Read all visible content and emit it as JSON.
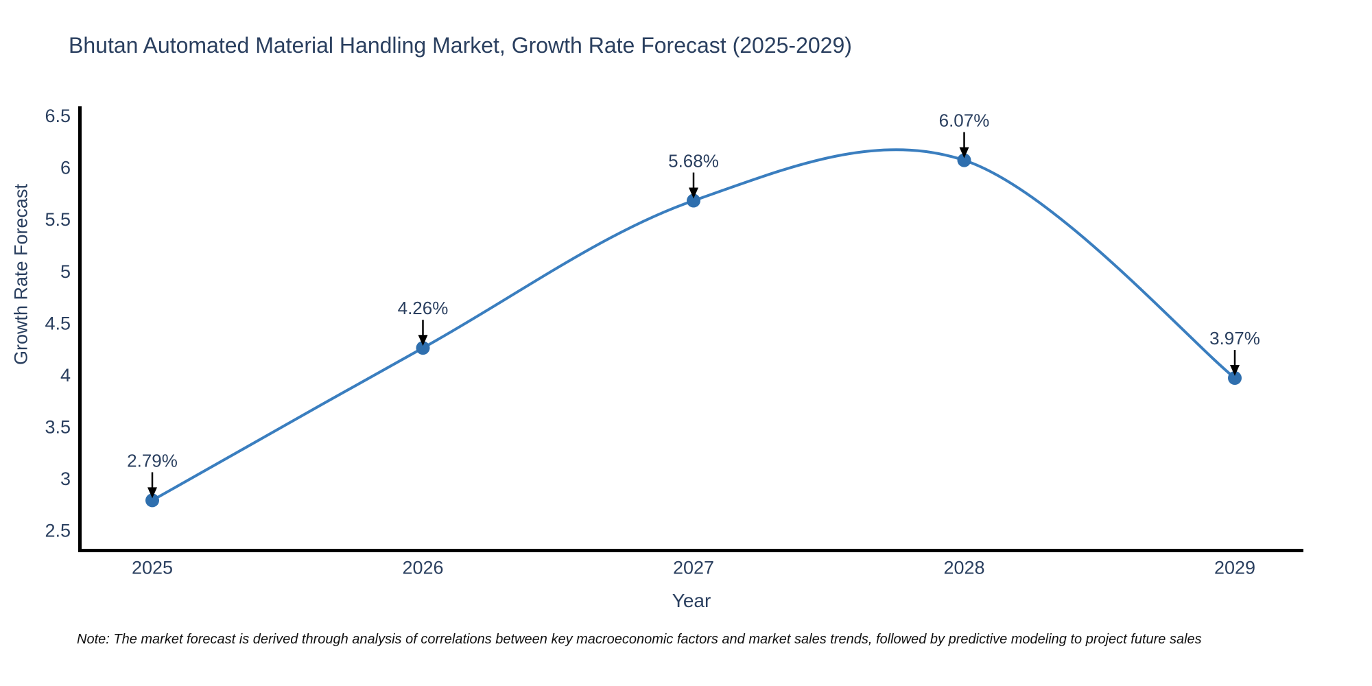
{
  "note": "Note: The market forecast is derived through analysis of correlations between key macroeconomic factors and market sales trends, followed by predictive modeling to project future sales",
  "chart_data": {
    "type": "line",
    "title": "Bhutan Automated Material Handling Market, Growth Rate Forecast (2025-2029)",
    "xlabel": "Year",
    "ylabel": "Growth Rate Forecast",
    "categories": [
      "2025",
      "2026",
      "2027",
      "2028",
      "2029"
    ],
    "values": [
      2.79,
      4.26,
      5.68,
      6.07,
      3.97
    ],
    "point_labels": [
      "2.79%",
      "4.26%",
      "5.68%",
      "6.07%",
      "3.97%"
    ],
    "yticks": [
      2.5,
      3,
      3.5,
      4,
      4.5,
      5,
      5.5,
      6,
      6.5
    ],
    "ylim": [
      2.29,
      6.57
    ],
    "line_shape": "spline",
    "grid": false,
    "legend_position": "none",
    "colors": {
      "line": "#3a7ebf",
      "marker": "#2f6fae",
      "axis": "#000000",
      "text": "#2a3f5f",
      "annotation_text": "#2a3f5f",
      "annotation_arrow": "#000000",
      "background": "#ffffff"
    }
  }
}
